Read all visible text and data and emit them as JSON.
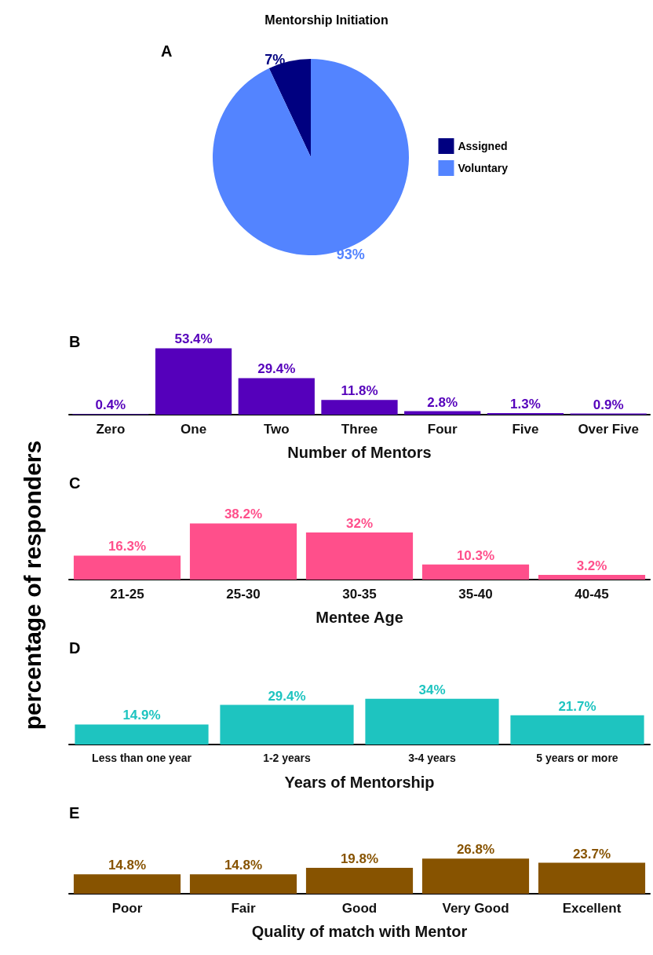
{
  "chart_data": [
    {
      "type": "pie",
      "title": "Mentorship Initiation",
      "categories": [
        "Assigned",
        "Voluntary"
      ],
      "values": [
        7,
        93
      ],
      "colors": [
        "#000080",
        "#5384ff"
      ],
      "value_labels": [
        "7%",
        "93%"
      ],
      "legend": "right",
      "annotations": [
        "A"
      ]
    },
    {
      "type": "bar",
      "categories": [
        "Zero",
        "One",
        "Two",
        "Three",
        "Four",
        "Five",
        "Over Five"
      ],
      "values": [
        0.4,
        53.4,
        29.4,
        11.8,
        2.8,
        1.3,
        0.9
      ],
      "color": "#5500bb",
      "value_labels": [
        "0.4%",
        "53.4%",
        "29.4%",
        "11.8%",
        "2.8%",
        "1.3%",
        "0.9%"
      ],
      "xlabel": "Number of Mentors",
      "ylabel": "percentage of responders",
      "annotations": [
        "B"
      ]
    },
    {
      "type": "bar",
      "categories": [
        "21-25",
        "25-30",
        "30-35",
        "35-40",
        "40-45"
      ],
      "values": [
        16.3,
        38.2,
        32,
        10.3,
        3.2
      ],
      "color": "#ff4f8b",
      "value_labels": [
        "16.3%",
        "38.2%",
        "32%",
        "10.3%",
        "3.2%"
      ],
      "xlabel": "Mentee Age",
      "annotations": [
        "C"
      ]
    },
    {
      "type": "bar",
      "categories": [
        "Less than one year",
        "1-2 years",
        "3-4 years",
        "5 years or more"
      ],
      "values": [
        14.9,
        29.4,
        34,
        21.7
      ],
      "color": "#1ec4c0",
      "value_labels": [
        "14.9%",
        "29.4%",
        "34%",
        "21.7%"
      ],
      "xlabel": "Years of Mentorship",
      "annotations": [
        "D"
      ]
    },
    {
      "type": "bar",
      "categories": [
        "Poor",
        "Fair",
        "Good",
        "Very Good",
        "Excellent"
      ],
      "values": [
        14.8,
        14.8,
        19.8,
        26.8,
        23.7
      ],
      "color": "#875300",
      "value_labels": [
        "14.8%",
        "14.8%",
        "19.8%",
        "26.8%",
        "23.7%"
      ],
      "xlabel": "Quality of match with Mentor",
      "annotations": [
        "E"
      ]
    }
  ]
}
